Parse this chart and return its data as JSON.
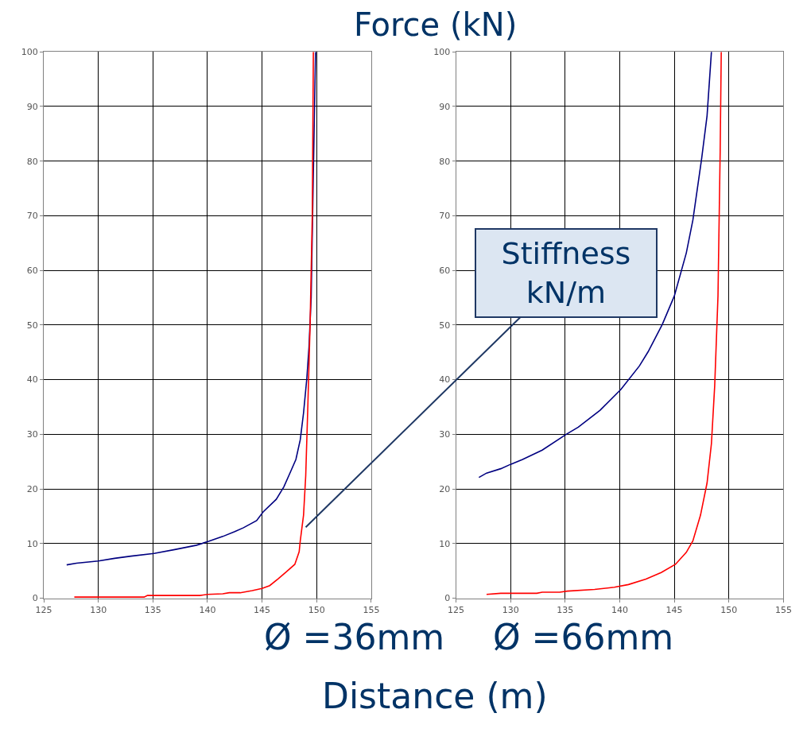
{
  "chart_data": [
    {
      "type": "line",
      "title": "Ø =36mm",
      "xlabel": "Distance (m)",
      "ylabel": "Force (kN)",
      "xlim": [
        125,
        155
      ],
      "xticks": [
        125,
        130,
        135,
        140,
        145,
        150,
        155
      ],
      "ylim": [
        0,
        100
      ],
      "yticks": [
        0,
        10,
        20,
        30,
        40,
        50,
        60,
        70,
        80,
        90,
        100
      ],
      "grid": true,
      "marker": "none",
      "line_style": "solid",
      "annotations": [
        {
          "text": "Stiffness\nkN/m",
          "x": 149,
          "y": 13
        }
      ],
      "series": [
        {
          "color": "#000080",
          "x": [
            127.1,
            128,
            130,
            131.5,
            133,
            135.1,
            137,
            139,
            140.1,
            141.4,
            142.5,
            143.3,
            144.5,
            145.1,
            146.3,
            147,
            147.6,
            148.1,
            148.5,
            148.8,
            149.1,
            149.3,
            149.5,
            149.7,
            149.9
          ],
          "values": [
            6.1,
            6.4,
            6.8,
            7.3,
            7.7,
            8.2,
            8.9,
            9.7,
            10.4,
            11.3,
            12.2,
            12.9,
            14.2,
            15.8,
            18.1,
            20.4,
            23.1,
            25.4,
            29.0,
            33.9,
            40.2,
            46,
            55,
            78,
            100
          ]
        },
        {
          "color": "#ff0000",
          "x": [
            127.8,
            134.2,
            134.5,
            139.3,
            140,
            141.4,
            142,
            143,
            144.1,
            145,
            145.7,
            146.5,
            147.2,
            148,
            148.4,
            148.5,
            148.8,
            149,
            149.2,
            149.4,
            149.6,
            149.7
          ],
          "values": [
            0.2,
            0.2,
            0.5,
            0.5,
            0.7,
            0.8,
            1.0,
            1.0,
            1.4,
            1.8,
            2.3,
            3.6,
            4.8,
            6.2,
            8.5,
            10.5,
            15.2,
            22.4,
            35.6,
            50,
            70,
            100
          ]
        }
      ]
    },
    {
      "type": "line",
      "title": "Ø =66mm",
      "xlim": [
        125,
        155
      ],
      "xticks": [
        125,
        130,
        135,
        140,
        145,
        150,
        155
      ],
      "ylim": [
        0,
        100
      ],
      "yticks": [
        0,
        10,
        20,
        30,
        40,
        50,
        60,
        70,
        80,
        90,
        100
      ],
      "grid": true,
      "marker": "none",
      "line_style": "solid",
      "series": [
        {
          "color": "#000080",
          "x": [
            127.1,
            127.8,
            129.1,
            130,
            131.1,
            132.9,
            135.1,
            136.2,
            138.2,
            140.1,
            141.8,
            142.6,
            143.9,
            145,
            146.1,
            146.7,
            147.5,
            148,
            148.4
          ],
          "values": [
            22.1,
            22.9,
            23.7,
            24.5,
            25.4,
            27.1,
            30.0,
            31.3,
            34.4,
            38.2,
            42.5,
            45.1,
            50.1,
            55.3,
            63.2,
            69.2,
            80.4,
            88.3,
            100
          ]
        },
        {
          "color": "#ff0000",
          "x": [
            127.8,
            129.1,
            132.4,
            132.9,
            134.5,
            135.2,
            137.7,
            139.5,
            140.8,
            142.4,
            143.8,
            145.1,
            146.1,
            146.7,
            147.4,
            148,
            148.4,
            148.7,
            149,
            149.2,
            149.3
          ],
          "values": [
            0.7,
            0.9,
            0.9,
            1.1,
            1.1,
            1.3,
            1.6,
            2.0,
            2.5,
            3.5,
            4.7,
            6.2,
            8.4,
            10.5,
            15.2,
            21.1,
            28.3,
            38.9,
            55.3,
            81.7,
            100
          ]
        }
      ]
    }
  ]
}
